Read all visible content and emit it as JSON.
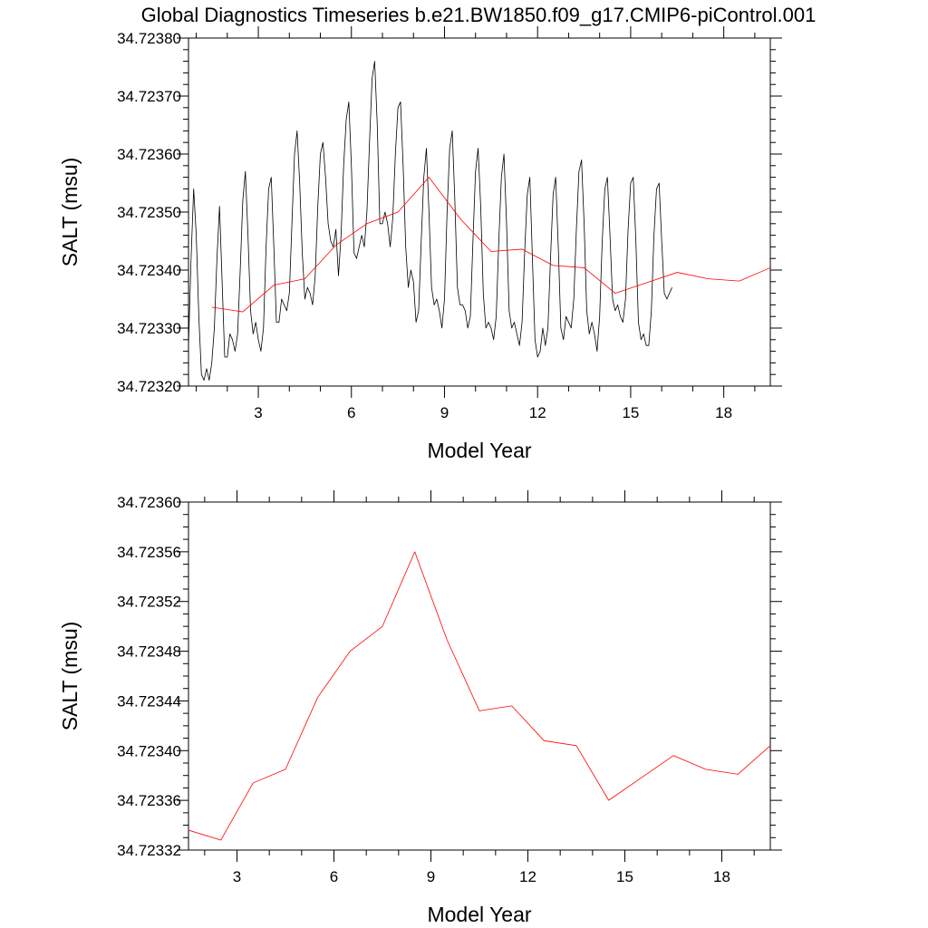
{
  "figure": {
    "title": "Global Diagnostics Timeseries b.e21.BW1850.f09_g17.CMIP6-piControl.001"
  },
  "chart_data": [
    {
      "type": "line",
      "xlabel": "Model Year",
      "ylabel": "SALT (msu)",
      "xlim": [
        0.75,
        19.5
      ],
      "ylim": [
        34.7232,
        34.7238
      ],
      "xticks": [
        3,
        6,
        9,
        12,
        15,
        18
      ],
      "yticks": [
        "34.72320",
        "34.72330",
        "34.72340",
        "34.72350",
        "34.72360",
        "34.72370",
        "34.72380"
      ],
      "grid": false,
      "series": [
        {
          "kind": "monthly",
          "color": "#000000",
          "x_start": 0.75,
          "x_step": 0.0833333,
          "values": [
            34.72327,
            34.72342,
            34.72354,
            34.72346,
            34.72332,
            34.72322,
            34.72321,
            34.72323,
            34.72321,
            34.72324,
            34.7233,
            34.72342,
            34.72351,
            34.72338,
            34.72325,
            34.72325,
            34.72329,
            34.72328,
            34.72326,
            34.72329,
            34.7234,
            34.72352,
            34.72357,
            34.72346,
            34.72333,
            34.72329,
            34.72331,
            34.72328,
            34.72326,
            34.7233,
            34.72344,
            34.72354,
            34.72356,
            34.72344,
            34.72331,
            34.72331,
            34.72335,
            34.72334,
            34.72333,
            34.72336,
            34.72348,
            34.7236,
            34.72364,
            34.72355,
            34.72343,
            34.72335,
            34.72337,
            34.72336,
            34.72334,
            34.72339,
            34.72351,
            34.7236,
            34.72362,
            34.72356,
            34.72348,
            34.72345,
            34.72344,
            34.72347,
            34.72339,
            34.72346,
            34.72358,
            34.72366,
            34.72369,
            34.72358,
            34.72343,
            34.72342,
            34.72344,
            34.72346,
            34.72344,
            34.7235,
            34.72362,
            34.72373,
            34.72376,
            34.72365,
            34.72348,
            34.72348,
            34.7235,
            34.72348,
            34.72344,
            34.72349,
            34.7236,
            34.72368,
            34.72369,
            34.72358,
            34.72344,
            34.72337,
            34.7234,
            34.72338,
            34.72331,
            34.72333,
            34.72345,
            34.72356,
            34.72361,
            34.7235,
            34.72337,
            34.72334,
            34.72335,
            34.72333,
            34.7233,
            34.72335,
            34.7235,
            34.72361,
            34.72364,
            34.72352,
            34.72337,
            34.72334,
            34.72334,
            34.72333,
            34.7233,
            34.72332,
            34.72345,
            34.72357,
            34.72361,
            34.72351,
            34.72336,
            34.7233,
            34.72331,
            34.7233,
            34.72328,
            34.72332,
            34.72345,
            34.72356,
            34.7236,
            34.72348,
            34.72333,
            34.7233,
            34.72331,
            34.72329,
            34.72327,
            34.72331,
            34.72343,
            34.72353,
            34.72356,
            34.72342,
            34.72328,
            34.72325,
            34.72326,
            34.7233,
            34.72327,
            34.7233,
            34.72342,
            34.72353,
            34.72356,
            34.72344,
            34.7233,
            34.72328,
            34.72332,
            34.72331,
            34.7233,
            34.72335,
            34.72347,
            34.72357,
            34.72359,
            34.72348,
            34.72333,
            34.72329,
            34.72331,
            34.72329,
            34.72326,
            34.72332,
            34.72345,
            34.72354,
            34.72356,
            34.72346,
            34.72335,
            34.72333,
            34.72334,
            34.72332,
            34.72331,
            34.72335,
            34.72347,
            34.72355,
            34.72356,
            34.72345,
            34.72331,
            34.72328,
            34.72329,
            34.72327,
            34.72327,
            34.72333,
            34.72346,
            34.72354,
            34.72355,
            34.72345,
            34.72336,
            34.72335,
            34.72336,
            34.72337
          ]
        },
        {
          "kind": "annual",
          "color": "#ff0000",
          "x": [
            1.5,
            2.5,
            3.5,
            4.5,
            5.5,
            6.5,
            7.5,
            8.5,
            9.5,
            10.5,
            11.5,
            12.5,
            13.5,
            14.5,
            15.5,
            16.5,
            17.5,
            18.5,
            19.5
          ],
          "values": [
            34.723336,
            34.723328,
            34.723374,
            34.723385,
            34.723443,
            34.72348,
            34.7235,
            34.72356,
            34.723489,
            34.723432,
            34.723436,
            34.723408,
            34.723404,
            34.72336,
            34.723378,
            34.723396,
            34.723385,
            34.723381,
            34.723404
          ]
        }
      ]
    },
    {
      "type": "line",
      "xlabel": "Model Year",
      "ylabel": "SALT (msu)",
      "xlim": [
        1.5,
        19.5
      ],
      "ylim": [
        34.72332,
        34.7236
      ],
      "xticks": [
        3,
        6,
        9,
        12,
        15,
        18
      ],
      "yticks": [
        "34.72332",
        "34.72336",
        "34.72340",
        "34.72344",
        "34.72348",
        "34.72352",
        "34.72356",
        "34.72360"
      ],
      "grid": false,
      "series": [
        {
          "kind": "annual",
          "color": "#ff0000",
          "x": [
            1.5,
            2.5,
            3.5,
            4.5,
            5.5,
            6.5,
            7.5,
            8.5,
            9.5,
            10.5,
            11.5,
            12.5,
            13.5,
            14.5,
            15.5,
            16.5,
            17.5,
            18.5,
            19.5
          ],
          "values": [
            34.723336,
            34.723328,
            34.723374,
            34.723385,
            34.723443,
            34.72348,
            34.7235,
            34.72356,
            34.723489,
            34.723432,
            34.723436,
            34.723408,
            34.723404,
            34.72336,
            34.723378,
            34.723396,
            34.723385,
            34.723381,
            34.723404
          ]
        }
      ]
    }
  ]
}
